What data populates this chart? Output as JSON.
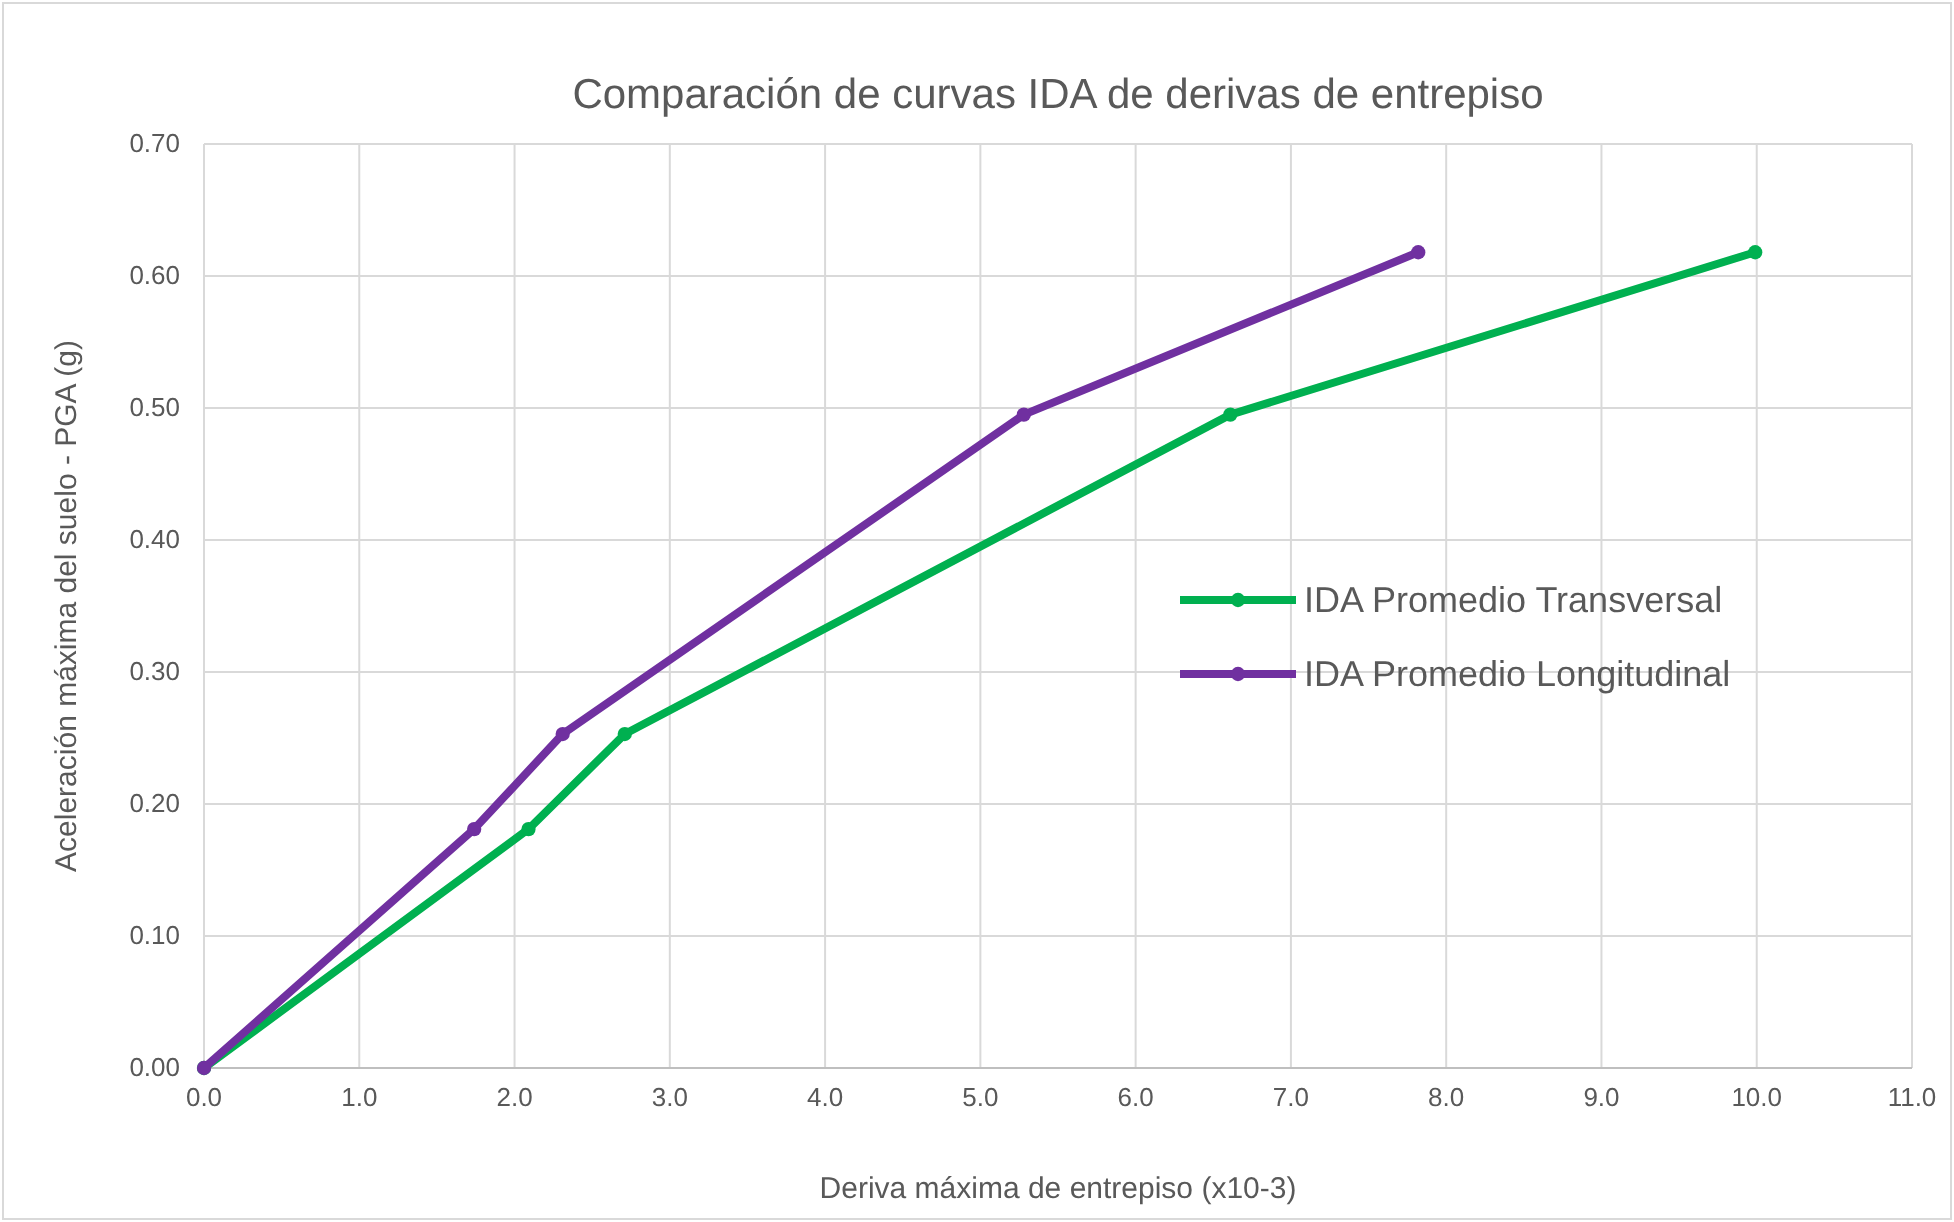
{
  "chart_data": {
    "type": "line",
    "title": "Comparación de curvas IDA de derivas de entrepiso",
    "xlabel": "Deriva máxima de entrepiso (x10-3)",
    "ylabel": "Aceleración máxima del suelo - PGA (g)",
    "xlim": [
      0,
      11
    ],
    "xticks": [
      {
        "value": 0,
        "label": "0.0"
      },
      {
        "value": 1,
        "label": "1.0"
      },
      {
        "value": 2,
        "label": "2.0"
      },
      {
        "value": 3,
        "label": "3.0"
      },
      {
        "value": 4,
        "label": "4.0"
      },
      {
        "value": 5,
        "label": "5.0"
      },
      {
        "value": 6,
        "label": "6.0"
      },
      {
        "value": 7,
        "label": "7.0"
      },
      {
        "value": 8,
        "label": "8.0"
      },
      {
        "value": 9,
        "label": "9.0"
      },
      {
        "value": 10,
        "label": "10.0"
      },
      {
        "value": 11,
        "label": "11.0"
      }
    ],
    "ylim": [
      0,
      0.7
    ],
    "yticks": [
      {
        "value": 0,
        "label": "0.00"
      },
      {
        "value": 0.1,
        "label": "0.10"
      },
      {
        "value": 0.2,
        "label": "0.20"
      },
      {
        "value": 0.3,
        "label": "0.30"
      },
      {
        "value": 0.4,
        "label": "0.40"
      },
      {
        "value": 0.5,
        "label": "0.50"
      },
      {
        "value": 0.6,
        "label": "0.60"
      },
      {
        "value": 0.7,
        "label": "0.70"
      }
    ],
    "grid": true,
    "legend": "right",
    "marker": "circle",
    "line_style": "solid",
    "series": [
      {
        "name": "IDA Promedio Transversal",
        "color": "#00b050",
        "x": [
          0,
          2.09,
          2.71,
          6.61,
          9.99
        ],
        "values": [
          0,
          0.181,
          0.253,
          0.495,
          0.618
        ]
      },
      {
        "name": "IDA Promedio Longitudinal",
        "color": "#7030a0",
        "x": [
          0,
          1.74,
          2.31,
          5.28,
          7.82
        ],
        "values": [
          0,
          0.181,
          0.253,
          0.495,
          0.618
        ]
      }
    ]
  }
}
